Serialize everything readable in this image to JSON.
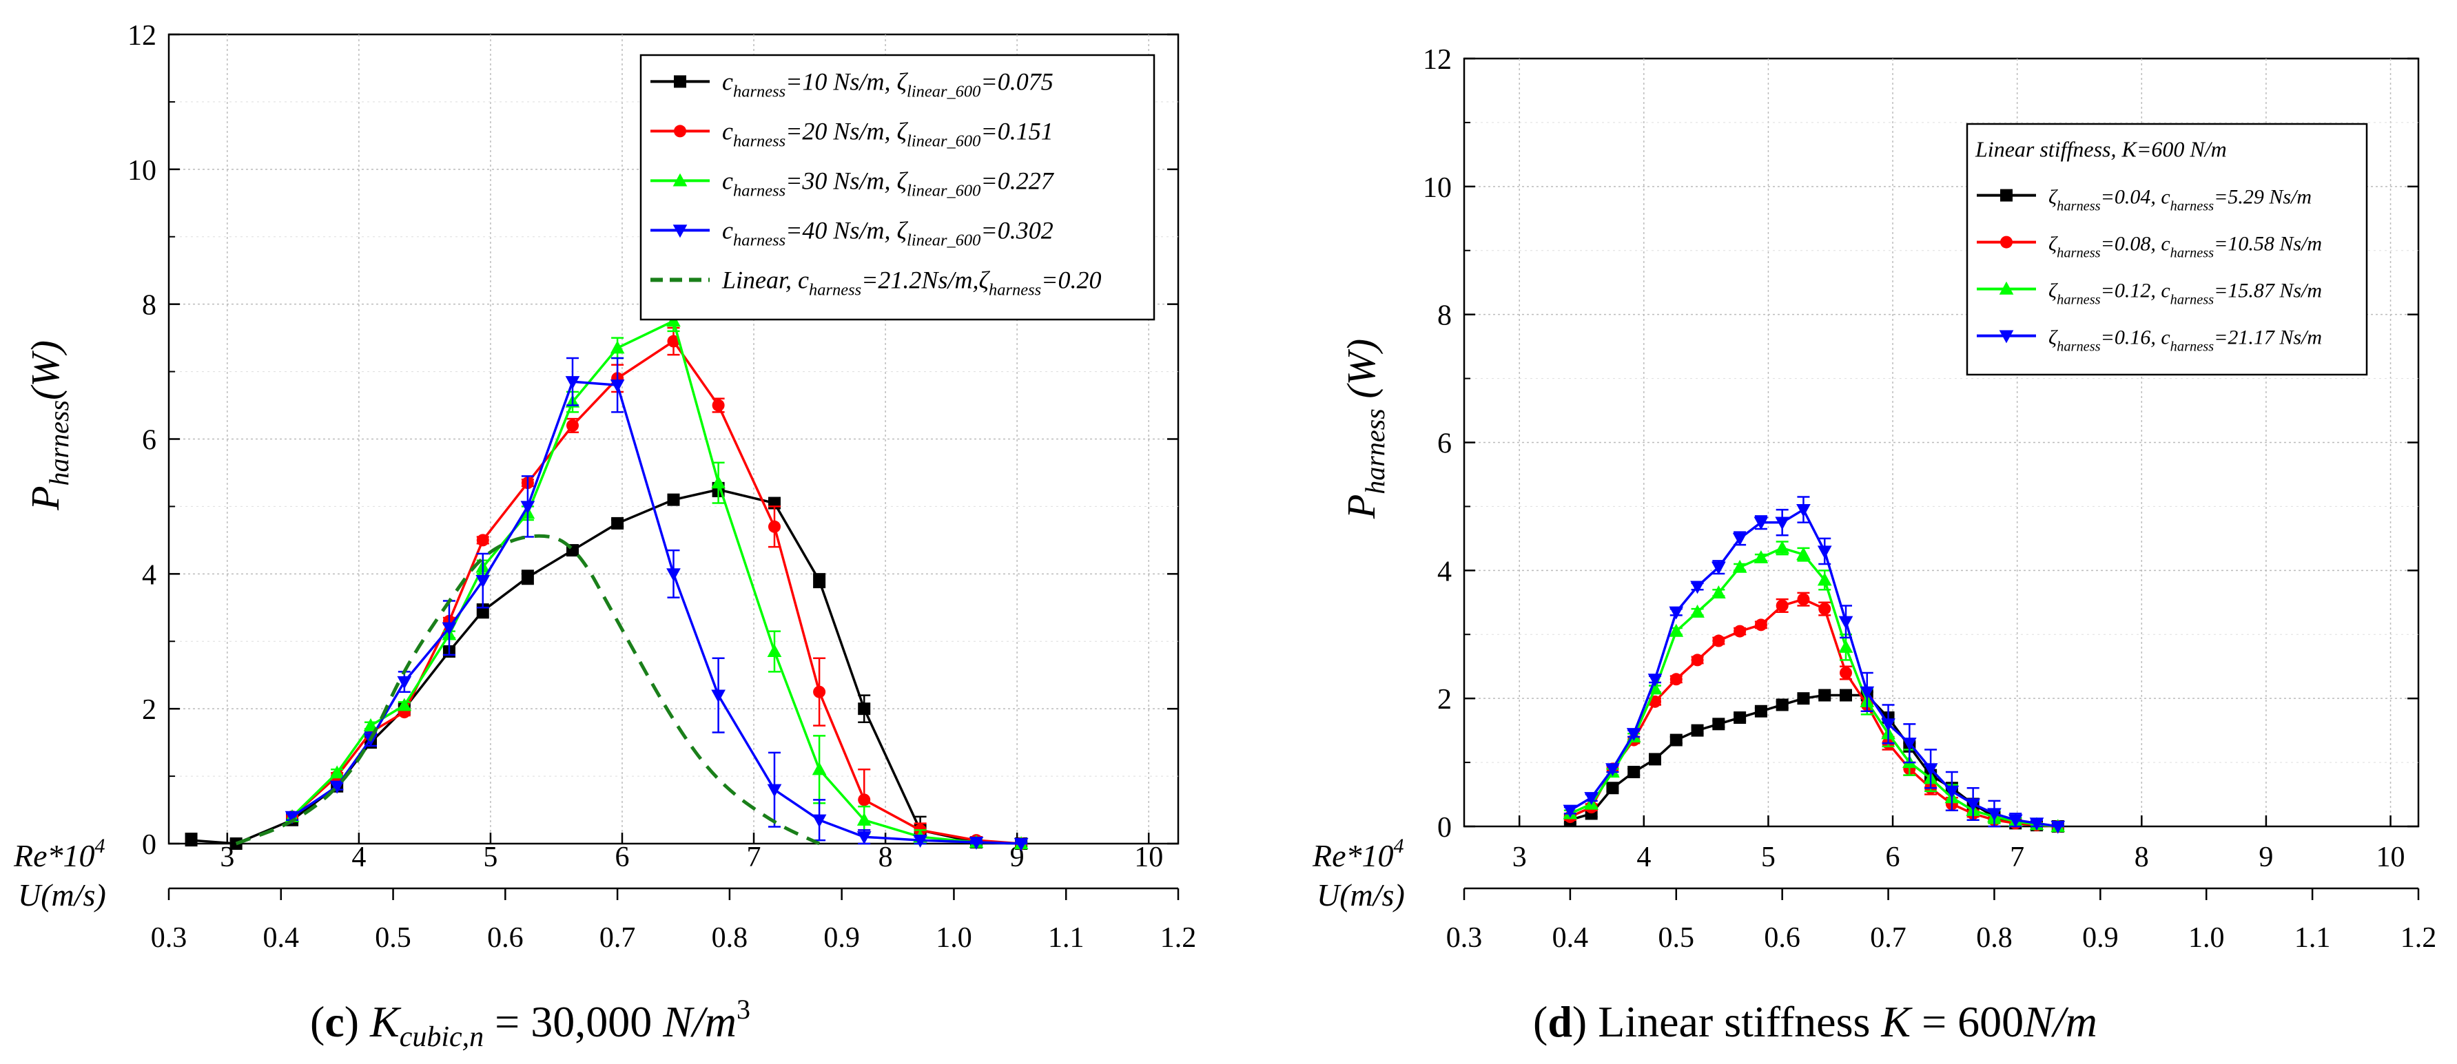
{
  "chart_data": [
    {
      "id": "c",
      "type": "line",
      "title": "",
      "caption": {
        "letter": "c",
        "main": "K",
        "sub": "cubic,n",
        "eq": "=",
        "value": "30,000",
        "unit": "N/m",
        "sup": "3"
      },
      "ylabel": {
        "main": "P",
        "sub": "harness",
        "unit": "(W)"
      },
      "ylim": [
        0,
        12
      ],
      "yticks": [
        0,
        2,
        4,
        6,
        8,
        10,
        12
      ],
      "x_axis_label_re": "Re*10",
      "x_axis_label_re_sup": "4",
      "x_axis_label_u": "U(m/s)",
      "xlim_u": [
        0.3,
        1.2
      ],
      "re_ticks": [
        3,
        4,
        5,
        6,
        7,
        8,
        9,
        10
      ],
      "re_per_u": 8.52,
      "u_ticks": [
        "0.3",
        "0.4",
        "0.5",
        "0.6",
        "0.7",
        "0.8",
        "0.9",
        "1.0",
        "1.1",
        "1.2"
      ],
      "legend_position": "top-right",
      "series": [
        {
          "name": "c=10",
          "label_pre": "c",
          "label_sub": "harness",
          "label_rest": "=10 Ns/m, ζ",
          "label_sub2": "linear_600",
          "label_end": "=0.075",
          "color": "#000000",
          "marker": "square",
          "dash": false,
          "x": [
            0.32,
            0.36,
            0.41,
            0.45,
            0.48,
            0.51,
            0.55,
            0.58,
            0.62,
            0.66,
            0.7,
            0.75,
            0.79,
            0.84,
            0.88,
            0.92,
            0.97,
            1.02,
            1.06
          ],
          "values": [
            0.05,
            0.0,
            0.35,
            0.85,
            1.5,
            2.0,
            2.85,
            3.45,
            3.95,
            4.35,
            4.75,
            5.1,
            5.25,
            5.05,
            3.9,
            2.0,
            0.2,
            0.02,
            0.0
          ],
          "err": [
            0.1,
            0.05,
            0.05,
            0.05,
            0.05,
            0.05,
            0.05,
            0.1,
            0.1,
            0.05,
            0.05,
            0.05,
            0.1,
            0.05,
            0.1,
            0.2,
            0.2,
            0.05,
            0.02
          ]
        },
        {
          "name": "c=20",
          "label_pre": "c",
          "label_sub": "harness",
          "label_rest": "=20 Ns/m, ζ",
          "label_sub2": "linear_600",
          "label_end": "=0.151",
          "color": "#ff0000",
          "marker": "circle",
          "dash": false,
          "x": [
            0.41,
            0.45,
            0.48,
            0.51,
            0.55,
            0.58,
            0.62,
            0.66,
            0.7,
            0.75,
            0.79,
            0.84,
            0.88,
            0.92,
            0.97,
            1.02,
            1.06
          ],
          "values": [
            0.4,
            1.0,
            1.65,
            1.95,
            3.3,
            4.5,
            5.35,
            6.2,
            6.9,
            7.45,
            6.5,
            4.7,
            2.25,
            0.65,
            0.2,
            0.05,
            0.0
          ],
          "err": [
            0.05,
            0.05,
            0.05,
            0.05,
            0.05,
            0.05,
            0.05,
            0.1,
            0.2,
            0.2,
            0.1,
            0.3,
            0.5,
            0.45,
            0.1,
            0.05,
            0.02
          ]
        },
        {
          "name": "c=30",
          "label_pre": "c",
          "label_sub": "harness",
          "label_rest": "=30 Ns/m, ζ",
          "label_sub2": "linear_600",
          "label_end": "=0.227",
          "color": "#00ff00",
          "marker": "triangle-up",
          "dash": false,
          "x": [
            0.41,
            0.45,
            0.48,
            0.51,
            0.55,
            0.58,
            0.62,
            0.66,
            0.7,
            0.75,
            0.79,
            0.84,
            0.88,
            0.92,
            0.97,
            1.02,
            1.06
          ],
          "values": [
            0.4,
            1.05,
            1.75,
            2.05,
            3.1,
            4.1,
            4.9,
            6.55,
            7.35,
            7.75,
            5.35,
            2.85,
            1.1,
            0.35,
            0.1,
            0.02,
            0.0
          ],
          "err": [
            0.05,
            0.05,
            0.05,
            0.05,
            0.05,
            0.1,
            0.1,
            0.15,
            0.15,
            0.15,
            0.3,
            0.3,
            0.5,
            0.2,
            0.1,
            0.05,
            0.02
          ]
        },
        {
          "name": "c=40",
          "label_pre": "c",
          "label_sub": "harness",
          "label_rest": "=40 Ns/m, ζ",
          "label_sub2": "linear_600",
          "label_end": "=0.302",
          "color": "#0000ff",
          "marker": "triangle-down",
          "dash": false,
          "x": [
            0.41,
            0.45,
            0.48,
            0.51,
            0.55,
            0.58,
            0.62,
            0.66,
            0.7,
            0.75,
            0.79,
            0.84,
            0.88,
            0.92,
            0.97,
            1.02,
            1.06
          ],
          "values": [
            0.4,
            0.85,
            1.55,
            2.4,
            3.2,
            3.9,
            5.0,
            6.85,
            6.8,
            4.0,
            2.2,
            0.8,
            0.35,
            0.1,
            0.05,
            0.02,
            0.0
          ],
          "err": [
            0.05,
            0.05,
            0.1,
            0.15,
            0.4,
            0.4,
            0.45,
            0.35,
            0.4,
            0.35,
            0.55,
            0.55,
            0.3,
            0.1,
            0.05,
            0.02,
            0.02
          ]
        },
        {
          "name": "Linear",
          "label_pre": "Linear, c",
          "label_sub": "harness",
          "label_rest": "=21.2Ns/m,ζ",
          "label_sub2": "harness",
          "label_end": "=0.20",
          "color": "#1a7f1a",
          "marker": "none",
          "dash": true,
          "x": [
            0.36,
            0.41,
            0.45,
            0.48,
            0.51,
            0.55,
            0.58,
            0.62,
            0.66,
            0.7,
            0.75,
            0.79,
            0.84,
            0.88
          ],
          "values": [
            0.0,
            0.3,
            0.8,
            1.5,
            2.6,
            3.6,
            4.3,
            4.6,
            4.5,
            3.3,
            1.8,
            0.9,
            0.3,
            0.0
          ],
          "err": []
        }
      ]
    },
    {
      "id": "d",
      "type": "line",
      "title": "",
      "caption": {
        "letter": "d",
        "main": "Linear stiffness ",
        "italic": "K",
        "eq": " = 600",
        "unit": "N/m"
      },
      "ylabel": {
        "main": "P",
        "sub": "harness",
        "unit": " (W)"
      },
      "ylim": [
        0,
        12
      ],
      "yticks": [
        0,
        2,
        4,
        6,
        8,
        10,
        12
      ],
      "x_axis_label_re": "Re*10",
      "x_axis_label_re_sup": "4",
      "x_axis_label_u": "U(m/s)",
      "xlim_u": [
        0.3,
        1.2
      ],
      "re_ticks": [
        3,
        4,
        5,
        6,
        7,
        8,
        9,
        10
      ],
      "re_per_u": 8.52,
      "u_ticks": [
        "0.3",
        "0.4",
        "0.5",
        "0.6",
        "0.7",
        "0.8",
        "0.9",
        "1.0",
        "1.1",
        "1.2"
      ],
      "legend_position": "top-right",
      "legend_title": "Linear stiffness, K=600 N/m",
      "series": [
        {
          "name": "ζ=0.04",
          "label_pre": "ζ",
          "label_sub": "harness",
          "label_rest": "=0.04, c",
          "label_sub2": "harness",
          "label_end": "=5.29 Ns/m",
          "color": "#000000",
          "marker": "square",
          "dash": false,
          "x": [
            0.4,
            0.42,
            0.44,
            0.46,
            0.48,
            0.5,
            0.52,
            0.54,
            0.56,
            0.58,
            0.6,
            0.62,
            0.64,
            0.66,
            0.68,
            0.7,
            0.72,
            0.74,
            0.76,
            0.78,
            0.8,
            0.82,
            0.84,
            0.86
          ],
          "values": [
            0.1,
            0.2,
            0.6,
            0.85,
            1.05,
            1.35,
            1.5,
            1.6,
            1.7,
            1.8,
            1.9,
            2.0,
            2.05,
            2.05,
            2.05,
            1.7,
            1.25,
            0.8,
            0.6,
            0.35,
            0.15,
            0.05,
            0.02,
            0.0
          ],
          "err": [
            0.05,
            0.05,
            0.05,
            0.05,
            0.05,
            0.05,
            0.05,
            0.05,
            0.05,
            0.05,
            0.05,
            0.05,
            0.05,
            0.05,
            0.05,
            0.05,
            0.05,
            0.05,
            0.05,
            0.05,
            0.05,
            0.05,
            0.02,
            0.02
          ]
        },
        {
          "name": "ζ=0.08",
          "label_pre": "ζ",
          "label_sub": "harness",
          "label_rest": "=0.08, c",
          "label_sub2": "harness",
          "label_end": "=10.58 Ns/m",
          "color": "#ff0000",
          "marker": "circle",
          "dash": false,
          "x": [
            0.4,
            0.42,
            0.44,
            0.46,
            0.48,
            0.5,
            0.52,
            0.54,
            0.56,
            0.58,
            0.6,
            0.62,
            0.64,
            0.66,
            0.68,
            0.7,
            0.72,
            0.74,
            0.76,
            0.78,
            0.8,
            0.82,
            0.84,
            0.86
          ],
          "values": [
            0.15,
            0.3,
            0.9,
            1.35,
            1.95,
            2.3,
            2.6,
            2.9,
            3.05,
            3.15,
            3.45,
            3.55,
            3.4,
            2.4,
            1.9,
            1.3,
            0.9,
            0.6,
            0.35,
            0.2,
            0.1,
            0.05,
            0.02,
            0.0
          ],
          "err": [
            0.05,
            0.05,
            0.05,
            0.05,
            0.05,
            0.05,
            0.05,
            0.05,
            0.05,
            0.05,
            0.1,
            0.1,
            0.1,
            0.1,
            0.1,
            0.1,
            0.1,
            0.1,
            0.1,
            0.05,
            0.05,
            0.05,
            0.02,
            0.02
          ]
        },
        {
          "name": "ζ=0.12",
          "label_pre": "ζ",
          "label_sub": "harness",
          "label_rest": "=0.12, c",
          "label_sub2": "harness",
          "label_end": "=15.87 Ns/m",
          "color": "#00ff00",
          "marker": "triangle-up",
          "dash": false,
          "x": [
            0.4,
            0.42,
            0.44,
            0.46,
            0.48,
            0.5,
            0.52,
            0.54,
            0.56,
            0.58,
            0.6,
            0.62,
            0.64,
            0.66,
            0.68,
            0.7,
            0.72,
            0.74,
            0.76,
            0.78,
            0.8,
            0.82,
            0.84,
            0.86
          ],
          "values": [
            0.2,
            0.35,
            0.85,
            1.4,
            2.15,
            3.05,
            3.35,
            3.65,
            4.05,
            4.2,
            4.35,
            4.25,
            3.85,
            2.8,
            1.95,
            1.45,
            1.0,
            0.75,
            0.45,
            0.25,
            0.15,
            0.08,
            0.03,
            0.0
          ],
          "err": [
            0.05,
            0.05,
            0.05,
            0.05,
            0.05,
            0.05,
            0.05,
            0.05,
            0.05,
            0.05,
            0.1,
            0.1,
            0.15,
            0.2,
            0.2,
            0.2,
            0.2,
            0.2,
            0.2,
            0.15,
            0.1,
            0.05,
            0.02,
            0.02
          ]
        },
        {
          "name": "ζ=0.16",
          "label_pre": "ζ",
          "label_sub": "harness",
          "label_rest": "=0.16, c",
          "label_sub2": "harness",
          "label_end": "=21.17 Ns/m",
          "color": "#0000ff",
          "marker": "triangle-down",
          "dash": false,
          "x": [
            0.4,
            0.42,
            0.44,
            0.46,
            0.48,
            0.5,
            0.52,
            0.54,
            0.56,
            0.58,
            0.6,
            0.62,
            0.64,
            0.66,
            0.68,
            0.7,
            0.72,
            0.74,
            0.76,
            0.78,
            0.8,
            0.82,
            0.84,
            0.86
          ],
          "values": [
            0.25,
            0.45,
            0.9,
            1.45,
            2.3,
            3.35,
            3.75,
            4.05,
            4.5,
            4.75,
            4.75,
            4.95,
            4.3,
            3.2,
            2.1,
            1.6,
            1.3,
            0.9,
            0.55,
            0.35,
            0.2,
            0.1,
            0.05,
            0.0
          ],
          "err": [
            0.05,
            0.05,
            0.05,
            0.05,
            0.05,
            0.05,
            0.05,
            0.1,
            0.1,
            0.1,
            0.2,
            0.2,
            0.2,
            0.25,
            0.3,
            0.3,
            0.3,
            0.3,
            0.3,
            0.25,
            0.2,
            0.1,
            0.05,
            0.02
          ]
        }
      ]
    }
  ]
}
